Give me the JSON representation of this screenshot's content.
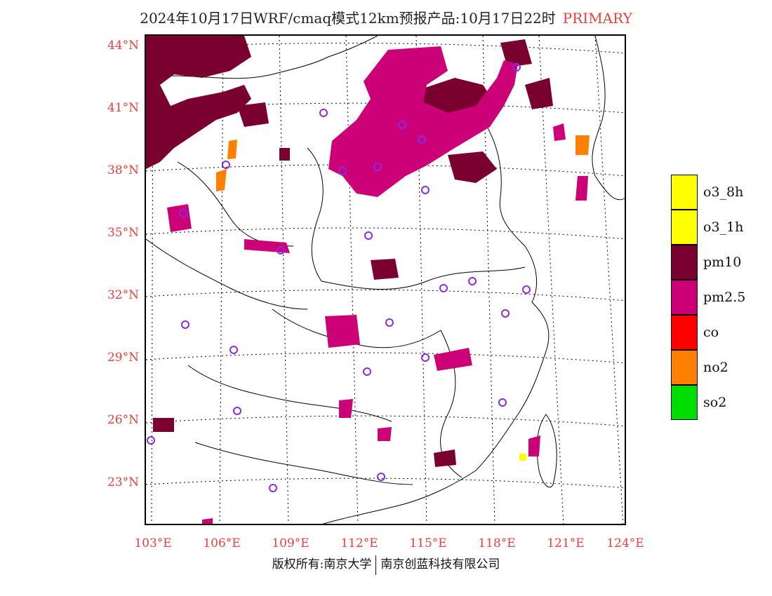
{
  "title": {
    "main": "2024年10月17日WRF/cmaq模式12km预报产品:10月17日22时",
    "tag": "PRIMARY"
  },
  "map": {
    "lat_labels": [
      "44°N",
      "41°N",
      "38°N",
      "35°N",
      "32°N",
      "29°N",
      "26°N",
      "23°N"
    ],
    "lon_labels": [
      "103°E",
      "106°E",
      "109°E",
      "112°E",
      "115°E",
      "118°E",
      "121°E",
      "124°E"
    ]
  },
  "legend": {
    "items": [
      {
        "label": "o3_8h",
        "color": "#ffff00"
      },
      {
        "label": "o3_1h",
        "color": "#ffff00"
      },
      {
        "label": "pm10",
        "color": "#7a0030"
      },
      {
        "label": "pm2.5",
        "color": "#cc0077"
      },
      {
        "label": "co",
        "color": "#ff0000"
      },
      {
        "label": "no2",
        "color": "#ff8000"
      },
      {
        "label": "so2",
        "color": "#00dd00"
      }
    ]
  },
  "colors": {
    "pm10": "#7a0030",
    "pm25": "#cc0077",
    "no2": "#ff8000",
    "o3": "#ffff00",
    "station": "#8a2be2",
    "label": "#e8413b"
  },
  "footer": {
    "left": "版权所有:南京大学",
    "right": "南京创蓝科技有限公司"
  }
}
